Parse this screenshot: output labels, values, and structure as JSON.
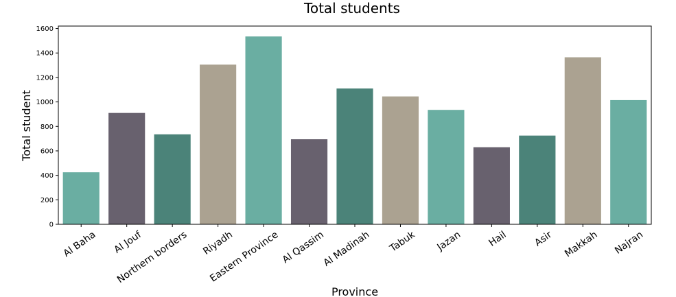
{
  "chart_data": {
    "type": "bar",
    "title": "Total students",
    "xlabel": "Province",
    "ylabel": "Total student",
    "categories": [
      "Al Baha",
      "Al Jouf",
      "Northern borders",
      "Riyadh",
      "Eastern Province",
      "Al Qassim",
      "Al Madinah",
      "Tabuk",
      "Jazan",
      "Hail",
      "Asir",
      "Makkah",
      "Najran"
    ],
    "values": [
      425,
      910,
      735,
      1305,
      1535,
      695,
      1110,
      1045,
      935,
      630,
      725,
      1365,
      1015
    ],
    "bar_colors": [
      "#6aaea2",
      "#68616e",
      "#4b8379",
      "#aba291",
      "#6aaea2",
      "#68616e",
      "#4b8379",
      "#aba291",
      "#6aaea2",
      "#68616e",
      "#4b8379",
      "#aba291",
      "#6aaea2"
    ],
    "ylim": [
      0,
      1620
    ],
    "yticks": [
      0,
      200,
      400,
      600,
      800,
      1000,
      1200,
      1400,
      1600
    ],
    "grid": false,
    "legend": "none"
  }
}
